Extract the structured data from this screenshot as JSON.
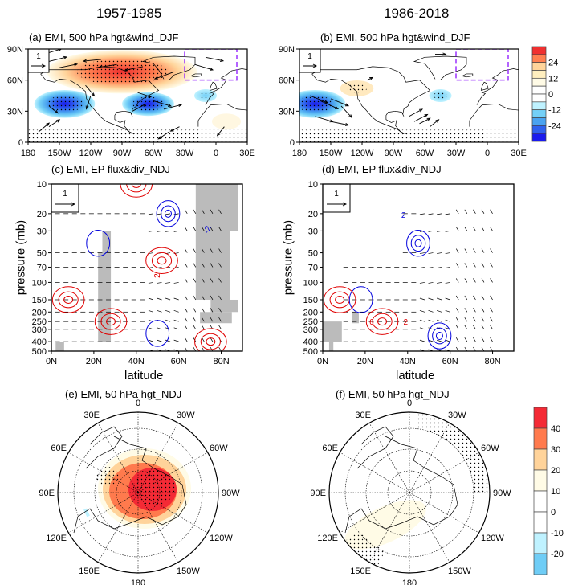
{
  "column_titles": [
    "1957-1985",
    "1986-2018"
  ],
  "chart_data": [
    {
      "id": "a",
      "type": "heatmap",
      "title": "(a) EMI, 500 hPa hgt&wind_DJF",
      "period": "1957-1985",
      "variable": "500 hPa geopotential height & wind regression",
      "x_ticks": [
        "180",
        "150W",
        "120W",
        "90W",
        "60W",
        "30W",
        "0",
        "30E"
      ],
      "x_range": [
        -180,
        30
      ],
      "y_ticks": [
        "0",
        "30N",
        "60N",
        "90N"
      ],
      "y_range": [
        0,
        90
      ],
      "reference_vector": "1",
      "box_region": {
        "lon": [
          -30,
          20
        ],
        "lat": [
          60,
          90
        ]
      },
      "anomalies": [
        {
          "center_lon": -90,
          "center_lat": 68,
          "value": 36,
          "sign": "positive",
          "label": "North America / Arctic high"
        },
        {
          "center_lon": -145,
          "center_lat": 37,
          "value": -28,
          "sign": "negative",
          "label": "North Pacific low"
        },
        {
          "center_lon": -65,
          "center_lat": 37,
          "value": -24,
          "sign": "negative",
          "label": "Western Atlantic low"
        },
        {
          "center_lon": -10,
          "center_lat": 45,
          "value": -8,
          "sign": "negative",
          "label": "Eastern Atlantic weak low"
        },
        {
          "center_lon": 10,
          "center_lat": 20,
          "value": 6,
          "sign": "positive",
          "label": "North Africa weak high"
        }
      ]
    },
    {
      "id": "b",
      "type": "heatmap",
      "title": "(b) EMI, 500 hPa hgt&wind_DJF",
      "period": "1986-2018",
      "variable": "500 hPa geopotential height & wind regression",
      "x_ticks": [
        "180",
        "150W",
        "120W",
        "90W",
        "60W",
        "30W",
        "0",
        "30E"
      ],
      "x_range": [
        -180,
        30
      ],
      "y_ticks": [
        "0",
        "30N",
        "60N",
        "90N"
      ],
      "y_range": [
        0,
        90
      ],
      "reference_vector": "1",
      "box_region": {
        "lon": [
          -30,
          20
        ],
        "lat": [
          60,
          90
        ]
      },
      "colorbar": {
        "levels": [
          "24",
          "12",
          "0",
          "-12",
          "-24"
        ],
        "colors": [
          "#f03030",
          "#ff7f50",
          "#ffd49a",
          "#ffefbf",
          "#fffbe6",
          "#ffffff",
          "#ffffff",
          "#bff2ff",
          "#74d0f7",
          "#4aa3f0",
          "#2f61ee",
          "#1a1aee"
        ]
      },
      "anomalies": [
        {
          "center_lon": -165,
          "center_lat": 37,
          "value": -28,
          "sign": "negative",
          "label": "North Pacific low"
        },
        {
          "center_lon": -125,
          "center_lat": 52,
          "value": 8,
          "sign": "positive",
          "label": "weak high"
        },
        {
          "center_lon": -45,
          "center_lat": 45,
          "value": -8,
          "sign": "negative",
          "label": "Atlantic weak low"
        }
      ]
    },
    {
      "id": "c",
      "type": "heatmap",
      "title": "(c) EMI, EP flux&div_NDJ",
      "period": "1957-1985",
      "xlabel": "latitude",
      "ylabel": "pressure (mb)",
      "x_ticks": [
        "0N",
        "20N",
        "40N",
        "60N",
        "80N"
      ],
      "x_range": [
        0,
        90
      ],
      "y_ticks": [
        "10",
        "20",
        "30",
        "50",
        "70",
        "100",
        "150",
        "200",
        "250",
        "300",
        "400",
        "500"
      ],
      "y_range": [
        500,
        10
      ],
      "reference_vector": "1",
      "contour_labels": [
        "2",
        "-2"
      ],
      "contours": [
        {
          "color": "red",
          "sign": "positive",
          "center_lat": 8,
          "center_p": 150
        },
        {
          "color": "red",
          "sign": "positive",
          "center_lat": 28,
          "center_p": 250
        },
        {
          "color": "red",
          "sign": "positive",
          "center_lat": 52,
          "center_p": 60
        },
        {
          "color": "red",
          "sign": "positive",
          "center_lat": 75,
          "center_p": 400
        },
        {
          "color": "red",
          "sign": "positive",
          "center_lat": 40,
          "center_p": 10
        },
        {
          "color": "blue",
          "sign": "negative",
          "center_lat": 22,
          "center_p": 40
        },
        {
          "color": "blue",
          "sign": "negative",
          "center_lat": 55,
          "center_p": 20
        },
        {
          "color": "blue",
          "sign": "negative",
          "center_lat": 50,
          "center_p": 330
        }
      ]
    },
    {
      "id": "d",
      "type": "heatmap",
      "title": "(d) EMI, EP flux&div_NDJ",
      "period": "1986-2018",
      "xlabel": "latitude",
      "ylabel": "pressure (mb)",
      "x_ticks": [
        "0N",
        "20N",
        "40N",
        "60N",
        "80N"
      ],
      "x_range": [
        0,
        90
      ],
      "y_ticks": [
        "10",
        "20",
        "30",
        "50",
        "70",
        "100",
        "150",
        "200",
        "250",
        "300",
        "400",
        "500"
      ],
      "y_range": [
        500,
        10
      ],
      "reference_vector": "1",
      "contour_labels": [
        "2",
        "6",
        "2"
      ],
      "contours": [
        {
          "color": "red",
          "sign": "positive",
          "center_lat": 8,
          "center_p": 150
        },
        {
          "color": "red",
          "sign": "positive",
          "center_lat": 28,
          "center_p": 250
        },
        {
          "color": "blue",
          "sign": "negative",
          "center_lat": 45,
          "center_p": 40
        },
        {
          "color": "blue",
          "sign": "negative",
          "center_lat": 18,
          "center_p": 150
        },
        {
          "color": "blue",
          "sign": "negative",
          "center_lat": 55,
          "center_p": 350
        }
      ]
    },
    {
      "id": "e",
      "type": "heatmap",
      "title": "(e) EMI, 50 hPa hgt_NDJ",
      "period": "1957-1985",
      "projection": "polar stereographic",
      "lon_labels": [
        "0",
        "30W",
        "60W",
        "90W",
        "120W",
        "150W",
        "180",
        "150E",
        "120E",
        "90E",
        "60E",
        "30E"
      ],
      "anomalies": [
        {
          "value": 45,
          "sign": "positive",
          "label": "polar vortex positive anomaly centered near pole / North America side"
        }
      ]
    },
    {
      "id": "f",
      "type": "heatmap",
      "title": "(f) EMI, 50 hPa hgt_NDJ",
      "period": "1986-2018",
      "projection": "polar stereographic",
      "lon_labels": [
        "0",
        "30W",
        "60W",
        "90W",
        "120W",
        "150W",
        "180",
        "150E",
        "120E",
        "90E",
        "60E",
        "30E"
      ],
      "colorbar": {
        "levels": [
          "40",
          "30",
          "20",
          "10",
          "0",
          "-10",
          "-20"
        ],
        "colors": [
          "#f42a35",
          "#ff7a4d",
          "#ffd39a",
          "#fffbe6",
          "#ffffff",
          "#ffffff",
          "#bff2ff",
          "#6fcdf6"
        ]
      },
      "anomalies": [
        {
          "value": 12,
          "sign": "positive",
          "label": "weak positive over Pacific sector"
        }
      ]
    }
  ]
}
